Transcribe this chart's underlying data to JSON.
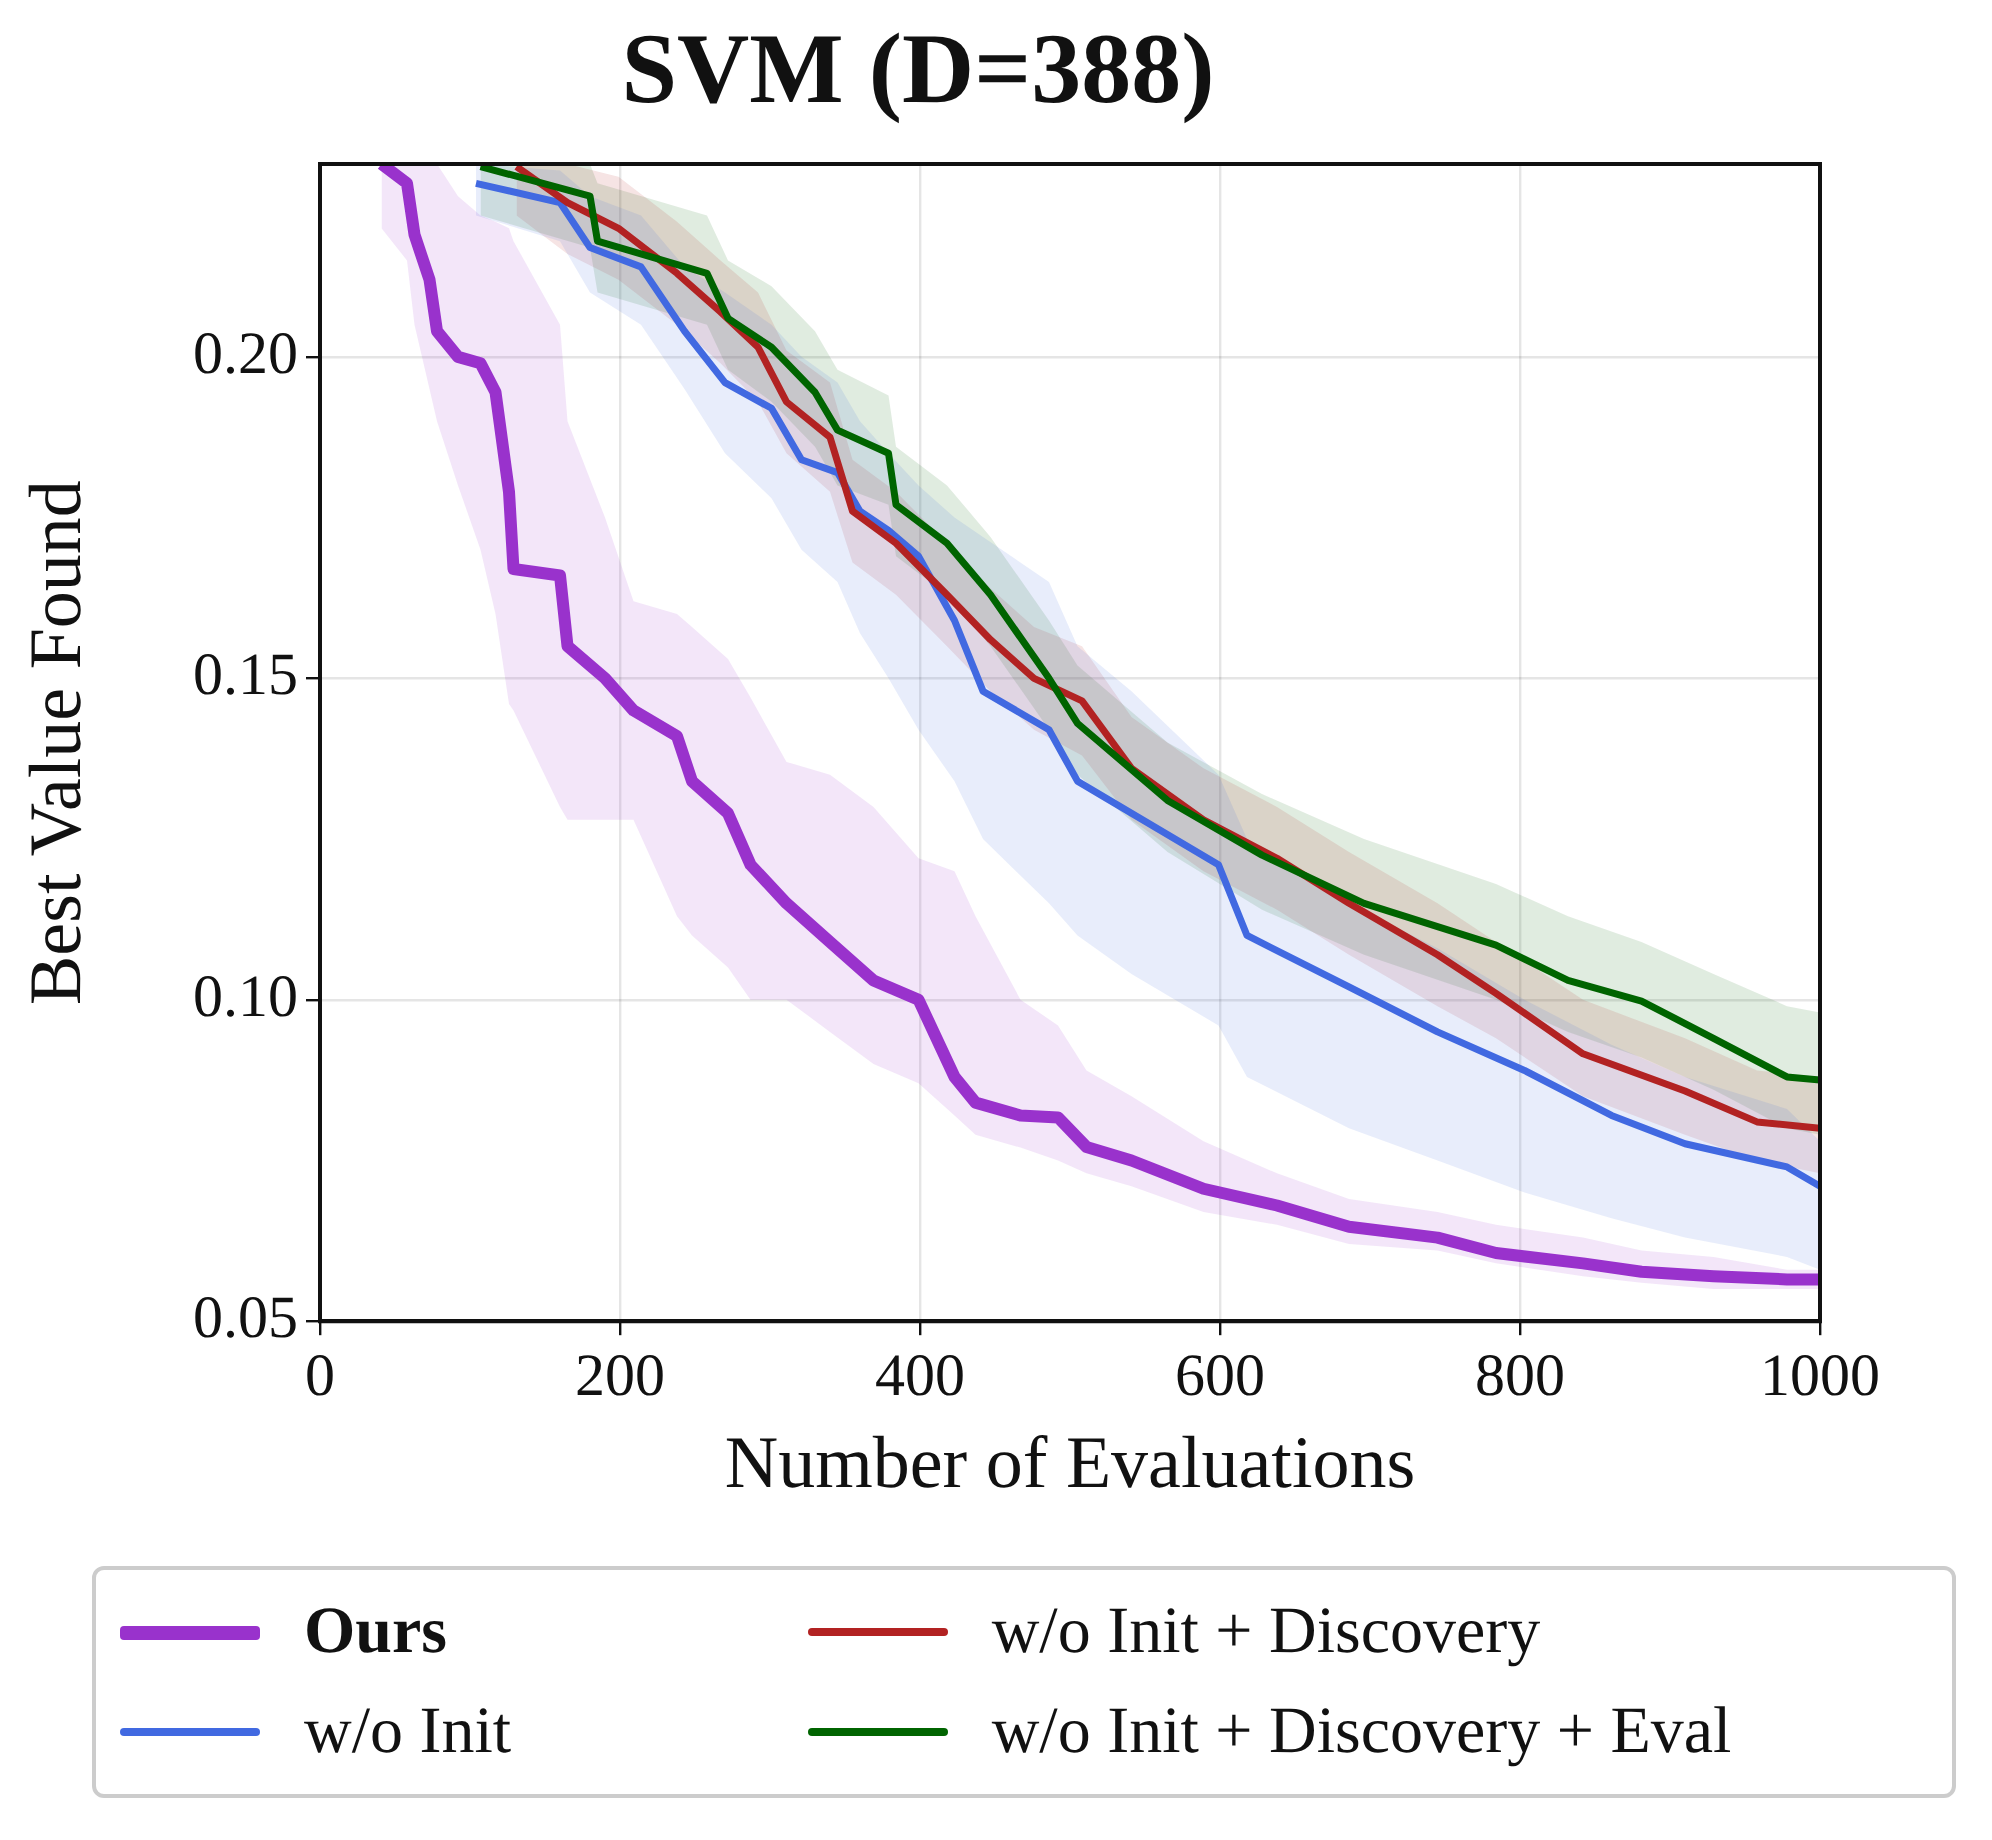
{
  "chart_data": {
    "type": "line",
    "title": "SVM (D=388)",
    "xlabel": "Number of Evaluations",
    "ylabel": "Best Value Found",
    "xlim": [
      0,
      1000
    ],
    "xticks": [
      0,
      200,
      400,
      600,
      800,
      1000
    ],
    "ylim": [
      0.05,
      0.23
    ],
    "yticks": [
      0.05,
      {
        "value": 0.1,
        "label": "0.10"
      },
      {
        "value": 0.15,
        "label": "0.15"
      },
      {
        "value": 0.2,
        "label": "0.20"
      }
    ],
    "grid": true,
    "legend": "bottom",
    "marker": "none",
    "line_style": "solid",
    "series": [
      {
        "name": "Ours",
        "color": "#9932cc",
        "x": [
          41,
          58,
          63,
          73,
          78,
          92,
          107,
          117,
          126,
          129,
          160,
          165,
          190,
          209,
          238,
          248,
          272,
          287,
          311,
          340,
          369,
          399,
          423,
          437,
          467,
          492,
          511,
          541,
          589,
          638,
          686,
          745,
          784,
          842,
          881,
          929,
          978,
          1000
        ],
        "values": [
          0.23,
          0.227,
          0.219,
          0.212,
          0.204,
          0.2,
          0.199,
          0.1945,
          0.179,
          0.167,
          0.166,
          0.155,
          0.15,
          0.145,
          0.141,
          0.134,
          0.129,
          0.121,
          0.115,
          0.109,
          0.103,
          0.1,
          0.088,
          0.084,
          0.082,
          0.0817,
          0.0771,
          0.075,
          0.0706,
          0.068,
          0.0647,
          0.063,
          0.0606,
          0.059,
          0.0577,
          0.057,
          0.0565,
          0.0565
        ],
        "lower": [
          0.22,
          0.215,
          0.205,
          0.195,
          0.19,
          0.18,
          0.17,
          0.16,
          0.146,
          0.145,
          0.13,
          0.128,
          0.128,
          0.128,
          0.113,
          0.11,
          0.105,
          0.1,
          0.1,
          0.095,
          0.09,
          0.087,
          0.082,
          0.079,
          0.077,
          0.075,
          0.073,
          0.071,
          0.067,
          0.065,
          0.062,
          0.061,
          0.059,
          0.057,
          0.056,
          0.055,
          0.055,
          0.055
        ],
        "upper": [
          0.23,
          0.23,
          0.23,
          0.23,
          0.23,
          0.225,
          0.222,
          0.221,
          0.22,
          0.218,
          0.205,
          0.19,
          0.175,
          0.162,
          0.16,
          0.158,
          0.153,
          0.147,
          0.137,
          0.135,
          0.13,
          0.122,
          0.12,
          0.113,
          0.1,
          0.096,
          0.089,
          0.085,
          0.078,
          0.073,
          0.069,
          0.067,
          0.065,
          0.063,
          0.061,
          0.06,
          0.058,
          0.058
        ]
      },
      {
        "name": "w/o Init",
        "color": "#4169e1",
        "x": [
          104,
          160,
          180,
          214,
          243,
          270,
          301,
          321,
          345,
          360,
          379,
          399,
          423,
          442,
          486,
          505,
          541,
          599,
          618,
          686,
          745,
          803,
          861,
          910,
          978,
          1000
        ],
        "values": [
          0.227,
          0.224,
          0.217,
          0.214,
          0.204,
          0.196,
          0.192,
          0.184,
          0.182,
          0.176,
          0.173,
          0.169,
          0.159,
          0.148,
          0.142,
          0.134,
          0.129,
          0.121,
          0.11,
          0.102,
          0.095,
          0.089,
          0.082,
          0.0776,
          0.074,
          0.071
        ],
        "lower": [
          0.222,
          0.218,
          0.21,
          0.205,
          0.195,
          0.185,
          0.178,
          0.17,
          0.165,
          0.157,
          0.15,
          0.142,
          0.134,
          0.125,
          0.115,
          0.11,
          0.104,
          0.096,
          0.088,
          0.08,
          0.075,
          0.07,
          0.066,
          0.063,
          0.06,
          0.058
        ],
        "upper": [
          0.23,
          0.229,
          0.225,
          0.222,
          0.214,
          0.21,
          0.205,
          0.2,
          0.196,
          0.19,
          0.185,
          0.18,
          0.175,
          0.172,
          0.165,
          0.155,
          0.148,
          0.135,
          0.125,
          0.115,
          0.108,
          0.1,
          0.093,
          0.088,
          0.083,
          0.078
        ]
      },
      {
        "name": "w/o Init + Discovery",
        "color": "#b22222",
        "x": [
          131,
          165,
          199,
          238,
          267,
          292,
          311,
          340,
          355,
          384,
          418,
          447,
          476,
          508,
          541,
          589,
          638,
          686,
          745,
          784,
          842,
          910,
          958,
          1000
        ],
        "values": [
          0.2296,
          0.224,
          0.22,
          0.213,
          0.207,
          0.2015,
          0.193,
          0.1875,
          0.176,
          0.171,
          0.163,
          0.156,
          0.15,
          0.1465,
          0.136,
          0.128,
          0.122,
          0.115,
          0.107,
          0.101,
          0.0916,
          0.0858,
          0.081,
          0.08
        ],
        "lower": [
          0.222,
          0.216,
          0.212,
          0.205,
          0.199,
          0.193,
          0.185,
          0.179,
          0.168,
          0.163,
          0.155,
          0.148,
          0.142,
          0.138,
          0.128,
          0.12,
          0.114,
          0.107,
          0.099,
          0.094,
          0.085,
          0.079,
          0.075,
          0.073
        ],
        "upper": [
          0.23,
          0.23,
          0.228,
          0.221,
          0.215,
          0.21,
          0.201,
          0.196,
          0.184,
          0.179,
          0.171,
          0.164,
          0.158,
          0.155,
          0.144,
          0.136,
          0.13,
          0.123,
          0.115,
          0.109,
          0.1,
          0.094,
          0.089,
          0.088
        ]
      },
      {
        "name": "w/o Init + Discovery + Eval",
        "color": "#006400",
        "x": [
          107,
          180,
          185,
          258,
          272,
          301,
          330,
          345,
          379,
          384,
          418,
          447,
          486,
          505,
          565,
          628,
          696,
          784,
          832,
          881,
          929,
          978,
          1000
        ],
        "values": [
          0.2296,
          0.225,
          0.218,
          0.213,
          0.206,
          0.2015,
          0.1945,
          0.1886,
          0.185,
          0.177,
          0.171,
          0.163,
          0.15,
          0.143,
          0.131,
          0.1225,
          0.115,
          0.1085,
          0.103,
          0.0998,
          0.094,
          0.088,
          0.0875
        ],
        "lower": [
          0.222,
          0.217,
          0.21,
          0.205,
          0.198,
          0.193,
          0.186,
          0.18,
          0.177,
          0.169,
          0.163,
          0.155,
          0.142,
          0.135,
          0.123,
          0.114,
          0.107,
          0.1,
          0.095,
          0.091,
          0.086,
          0.08,
          0.079
        ],
        "upper": [
          0.23,
          0.23,
          0.227,
          0.222,
          0.215,
          0.211,
          0.204,
          0.198,
          0.194,
          0.186,
          0.18,
          0.172,
          0.159,
          0.152,
          0.14,
          0.132,
          0.125,
          0.118,
          0.113,
          0.109,
          0.104,
          0.099,
          0.098
        ]
      }
    ]
  }
}
